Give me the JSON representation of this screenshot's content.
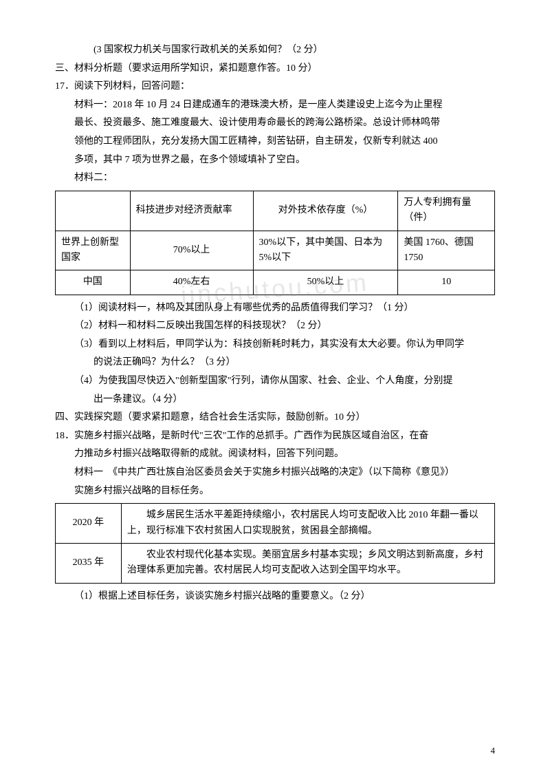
{
  "watermark": "jinchutou.com",
  "pagenum": "4",
  "lines": {
    "l1": "(3 国家权力机关与国家行政机关的关系如何？（2 分）",
    "l2": "三、材料分析题（要求运用所学知识，紧扣题意作答。10 分）",
    "l3": "17．阅读下列材料，回答问题：",
    "l4": "材料一：2018 年 10 月 24 日建成通车的港珠澳大桥，是一座人类建设史上迄今为止里程",
    "l5": "最长、投资最多、施工难度最大、设计使用寿命最长的跨海公路桥梁。总设计师林鸣带",
    "l6": "领他的工程师团队，充分发扬大国工匠精神，刻苦钻研，自主研发，仅新专利就达 400",
    "l7": "多项，其中 7 项为世界之最，在多个领域填补了空白。",
    "l8": "材料二：",
    "q1": "（1）阅读材料一，林鸣及其团队身上有哪些优秀的品质值得我们学习？（1 分）",
    "q2": "（2）材料一和材料二反映出我国怎样的科技现状？（2 分）",
    "q3a": "（3）看到以上材料后，甲同学认为：科技创新耗时耗力，其实没有太大必要。你认为甲同学",
    "q3b": "的说法正确吗？为什么？（3 分）",
    "q4a": "（4）为使我国尽快迈入\"创新型国家\"行列，请你从国家、社会、企业、个人角度，分别提",
    "q4b": "出一条建议。（4 分）",
    "s4": "四、实践探究题（要求紧扣题意，结合社会生活实际，鼓励创新。10 分）",
    "l18a": "18．实施乡村振兴战略，是新时代\"三农\"工作的总抓手。广西作为民族区域自治区，在奋",
    "l18b": "力推动乡村振兴战略取得新的成就。阅读材料，回答下列问题。",
    "m1a": "材料一　《中共广西壮族自治区委员会关于实施乡村振兴战略的决定》（以下简称《意见》）",
    "m1b": "实施乡村振兴战略的目标任务。",
    "q18": "（1）根据上述目标任务，谈谈实施乡村振兴战略的重要意义。（2 分）"
  },
  "table1": {
    "h1": "",
    "h2": "科技进步对经济贡献率",
    "h3": "对外技术依存度（%）",
    "h4": "万人专利拥有量（件）",
    "r1c1": "世界上创新型国家",
    "r1c2": "70%以上",
    "r1c3": "30%以下，其中美国、日本为5%以下",
    "r1c4": "美国 1760、德国1750",
    "r2c1": "中国",
    "r2c2": "40%左右",
    "r2c3": "50%以上",
    "r2c4": "10"
  },
  "table2": {
    "r1c1": "2020 年",
    "r1c2": "　　城乡居民生活水平差距持续缩小，农村居民人均可支配收入比 2010 年翻一番以上，现行标准下农村贫困人口实现脱贫，贫困县全部摘帽。",
    "r2c1": "2035 年",
    "r2c2": "　　农业农村现代化基本实现。美丽宜居乡村基本实现；乡风文明达到新高度，乡村治理体系更加完善。农村居民人均可支配收入达到全国平均水平。"
  }
}
